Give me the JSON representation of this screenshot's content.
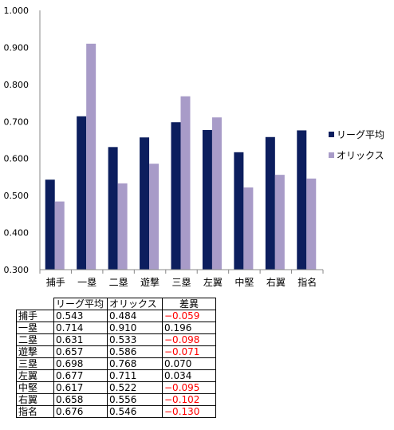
{
  "chart_data": {
    "type": "bar",
    "categories": [
      "捕手",
      "一塁",
      "二塁",
      "遊撃",
      "三塁",
      "左翼",
      "中堅",
      "右翼",
      "指名"
    ],
    "series": [
      {
        "name": "リーグ平均",
        "values": [
          0.543,
          0.714,
          0.631,
          0.657,
          0.698,
          0.677,
          0.617,
          0.658,
          0.676
        ]
      },
      {
        "name": "オリックス",
        "values": [
          0.484,
          0.91,
          0.533,
          0.586,
          0.768,
          0.711,
          0.522,
          0.556,
          0.546
        ]
      }
    ],
    "ylim": [
      0.3,
      1.0
    ],
    "y_ticks": [
      "0.300",
      "0.400",
      "0.500",
      "0.600",
      "0.700",
      "0.800",
      "0.900",
      "1.000"
    ],
    "legend_position": "right",
    "grid": false,
    "colors": [
      "#0c1e5e",
      "#a89bc8"
    ]
  },
  "table": {
    "headers": [
      "",
      "リーグ平均",
      "オリックス",
      "差異"
    ],
    "rows": [
      [
        "捕手",
        "0.543",
        "0.484",
        "−0.059"
      ],
      [
        "一塁",
        "0.714",
        "0.910",
        "0.196"
      ],
      [
        "二塁",
        "0.631",
        "0.533",
        "−0.098"
      ],
      [
        "遊撃",
        "0.657",
        "0.586",
        "−0.071"
      ],
      [
        "三塁",
        "0.698",
        "0.768",
        "0.070"
      ],
      [
        "左翼",
        "0.677",
        "0.711",
        "0.034"
      ],
      [
        "中堅",
        "0.617",
        "0.522",
        "−0.095"
      ],
      [
        "右翼",
        "0.658",
        "0.556",
        "−0.102"
      ],
      [
        "指名",
        "0.676",
        "0.546",
        "−0.130"
      ]
    ],
    "negative_color": "#ff0000"
  }
}
